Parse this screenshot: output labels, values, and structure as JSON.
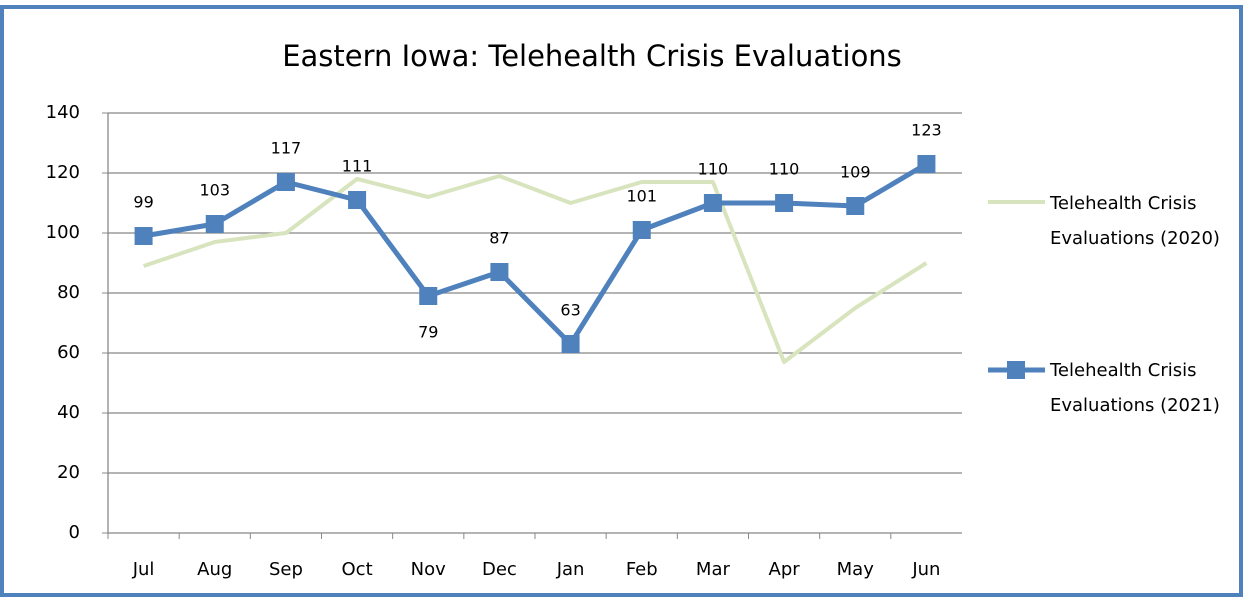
{
  "chart_data": {
    "type": "line",
    "title": "Eastern Iowa: Telehealth Crisis Evaluations",
    "categories": [
      "Jul",
      "Aug",
      "Sep",
      "Oct",
      "Nov",
      "Dec",
      "Jan",
      "Feb",
      "Mar",
      "Apr",
      "May",
      "Jun"
    ],
    "series": [
      {
        "name": "Telehealth Crisis Evaluations (2020)",
        "color": "#d7e4bd",
        "values": [
          89,
          97,
          100,
          118,
          112,
          119,
          110,
          117,
          117,
          57,
          75,
          90
        ]
      },
      {
        "name": "Telehealth Crisis Evaluations (2021)",
        "color": "#4f81bd",
        "values": [
          99,
          103,
          117,
          111,
          79,
          87,
          63,
          101,
          110,
          110,
          109,
          123
        ],
        "data_labels": true
      }
    ],
    "ylim": [
      0,
      140
    ],
    "yticks": [
      0,
      20,
      40,
      60,
      80,
      100,
      120,
      140
    ],
    "grid": true,
    "legend": "right"
  }
}
